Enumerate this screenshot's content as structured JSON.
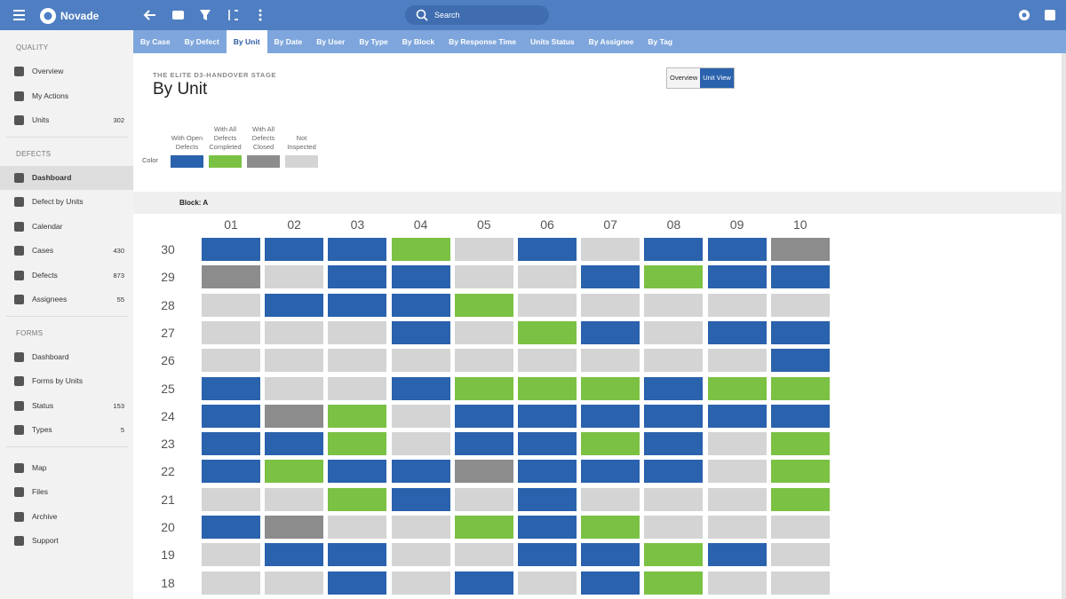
{
  "topbar": {
    "app_name": "Novade",
    "search_placeholder": "Search"
  },
  "tabs": [
    {
      "label": "By Case",
      "active": false
    },
    {
      "label": "By Defect",
      "active": false
    },
    {
      "label": "By Unit",
      "active": true
    },
    {
      "label": "By Date",
      "active": false
    },
    {
      "label": "By User",
      "active": false
    },
    {
      "label": "By Type",
      "active": false
    },
    {
      "label": "By Block",
      "active": false
    },
    {
      "label": "By Response Time",
      "active": false
    },
    {
      "label": "Units Status",
      "active": false
    },
    {
      "label": "By Assignee",
      "active": false
    },
    {
      "label": "By Tag",
      "active": false
    }
  ],
  "sidebar": {
    "sections": [
      {
        "title": "QUALITY",
        "items": [
          {
            "label": "Overview"
          },
          {
            "label": "My Actions"
          },
          {
            "label": "Units",
            "count": 302
          }
        ]
      },
      {
        "title": "DEFECTS",
        "items": [
          {
            "label": "Dashboard",
            "active": true
          },
          {
            "label": "Defect by Units"
          },
          {
            "label": "Calendar"
          },
          {
            "label": "Cases",
            "count": 430
          },
          {
            "label": "Defects",
            "count": 873
          },
          {
            "label": "Assignees",
            "count": 55
          }
        ]
      },
      {
        "title": "FORMS",
        "items": [
          {
            "label": "Dashboard"
          },
          {
            "label": "Forms by Units"
          },
          {
            "label": "Status",
            "count": 153
          },
          {
            "label": "Types",
            "count": 5
          }
        ]
      },
      {
        "items": [
          {
            "label": "Map"
          },
          {
            "label": "Files"
          },
          {
            "label": "Archive"
          },
          {
            "label": "Support"
          }
        ]
      }
    ]
  },
  "header": {
    "project": "THE ELITE D3-HANDOVER STAGE",
    "title": "By Unit",
    "view_toggle": [
      {
        "label": "Overview",
        "active": false
      },
      {
        "label": "Unit View",
        "active": true
      }
    ]
  },
  "legend": {
    "label": "Color",
    "items": [
      {
        "label": "With Open Defects",
        "color": "#2a62ad"
      },
      {
        "label": "With All Defects Completed",
        "color": "#7bc143"
      },
      {
        "label": "With All Defects Closed",
        "color": "#8c8c8c"
      },
      {
        "label": "Not Inspected",
        "color": "#d4d4d4"
      }
    ]
  },
  "block": {
    "label": "Block: A"
  },
  "grid": {
    "columns": [
      "01",
      "02",
      "03",
      "04",
      "05",
      "06",
      "07",
      "08",
      "09",
      "10"
    ],
    "rows": [
      {
        "label": "30",
        "cells": [
          "#2a62ad",
          "#2a62ad",
          "#2a62ad",
          "#7bc143",
          "#d4d4d4",
          "#2a62ad",
          "#d4d4d4",
          "#2a62ad",
          "#2a62ad",
          "#8c8c8c"
        ]
      },
      {
        "label": "29",
        "cells": [
          "#8c8c8c",
          "#d4d4d4",
          "#2a62ad",
          "#2a62ad",
          "#d4d4d4",
          "#d4d4d4",
          "#2a62ad",
          "#7bc143",
          "#2a62ad",
          "#2a62ad"
        ]
      },
      {
        "label": "28",
        "cells": [
          "#d4d4d4",
          "#2a62ad",
          "#2a62ad",
          "#2a62ad",
          "#7bc143",
          "#d4d4d4",
          "#d4d4d4",
          "#d4d4d4",
          "#d4d4d4",
          "#d4d4d4"
        ]
      },
      {
        "label": "27",
        "cells": [
          "#d4d4d4",
          "#d4d4d4",
          "#d4d4d4",
          "#2a62ad",
          "#d4d4d4",
          "#7bc143",
          "#2a62ad",
          "#d4d4d4",
          "#2a62ad",
          "#2a62ad"
        ]
      },
      {
        "label": "26",
        "cells": [
          "#d4d4d4",
          "#d4d4d4",
          "#d4d4d4",
          "#d4d4d4",
          "#d4d4d4",
          "#d4d4d4",
          "#d4d4d4",
          "#d4d4d4",
          "#d4d4d4",
          "#2a62ad"
        ]
      },
      {
        "label": "25",
        "cells": [
          "#2a62ad",
          "#d4d4d4",
          "#d4d4d4",
          "#2a62ad",
          "#7bc143",
          "#7bc143",
          "#7bc143",
          "#2a62ad",
          "#7bc143",
          "#7bc143"
        ]
      },
      {
        "label": "24",
        "cells": [
          "#2a62ad",
          "#8c8c8c",
          "#7bc143",
          "#d4d4d4",
          "#2a62ad",
          "#2a62ad",
          "#2a62ad",
          "#2a62ad",
          "#2a62ad",
          "#2a62ad"
        ]
      },
      {
        "label": "23",
        "cells": [
          "#2a62ad",
          "#2a62ad",
          "#7bc143",
          "#d4d4d4",
          "#2a62ad",
          "#2a62ad",
          "#7bc143",
          "#2a62ad",
          "#d4d4d4",
          "#7bc143"
        ]
      },
      {
        "label": "22",
        "cells": [
          "#2a62ad",
          "#7bc143",
          "#2a62ad",
          "#2a62ad",
          "#8c8c8c",
          "#2a62ad",
          "#2a62ad",
          "#2a62ad",
          "#d4d4d4",
          "#7bc143"
        ]
      },
      {
        "label": "21",
        "cells": [
          "#d4d4d4",
          "#d4d4d4",
          "#7bc143",
          "#2a62ad",
          "#d4d4d4",
          "#2a62ad",
          "#d4d4d4",
          "#d4d4d4",
          "#d4d4d4",
          "#7bc143"
        ]
      },
      {
        "label": "20",
        "cells": [
          "#2a62ad",
          "#8c8c8c",
          "#d4d4d4",
          "#d4d4d4",
          "#7bc143",
          "#2a62ad",
          "#7bc143",
          "#d4d4d4",
          "#d4d4d4",
          "#d4d4d4"
        ]
      },
      {
        "label": "19",
        "cells": [
          "#d4d4d4",
          "#2a62ad",
          "#2a62ad",
          "#d4d4d4",
          "#d4d4d4",
          "#2a62ad",
          "#2a62ad",
          "#7bc143",
          "#2a62ad",
          "#d4d4d4"
        ]
      },
      {
        "label": "18",
        "cells": [
          "#d4d4d4",
          "#d4d4d4",
          "#2a62ad",
          "#d4d4d4",
          "#2a62ad",
          "#d4d4d4",
          "#2a62ad",
          "#7bc143",
          "#d4d4d4",
          "#d4d4d4"
        ]
      }
    ]
  }
}
